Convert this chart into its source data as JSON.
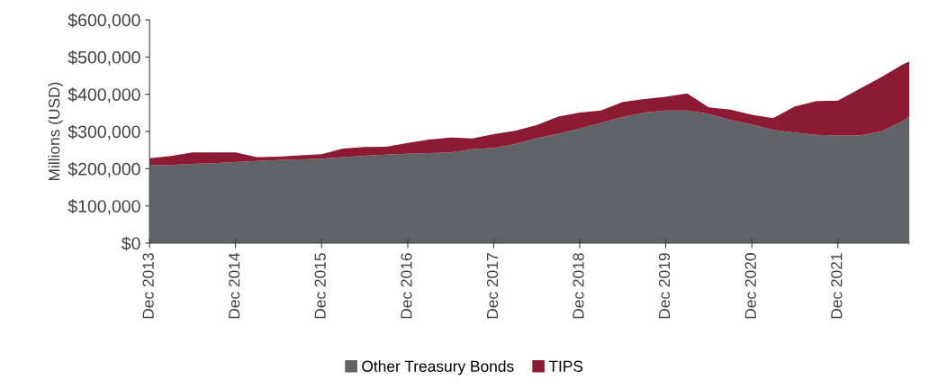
{
  "chart_data": {
    "type": "area",
    "stacked": true,
    "ylabel": "Millions (USD)",
    "x": [
      "2013-12",
      "2014-03",
      "2014-06",
      "2014-09",
      "2014-12",
      "2015-03",
      "2015-06",
      "2015-09",
      "2015-12",
      "2016-03",
      "2016-06",
      "2016-09",
      "2016-12",
      "2017-03",
      "2017-06",
      "2017-09",
      "2017-12",
      "2018-03",
      "2018-06",
      "2018-09",
      "2018-12",
      "2019-03",
      "2019-06",
      "2019-09",
      "2019-12",
      "2020-03",
      "2020-06",
      "2020-09",
      "2020-12",
      "2021-03",
      "2021-06",
      "2021-09",
      "2021-12",
      "2022-03",
      "2022-06",
      "2022-09",
      "2022-10"
    ],
    "series": [
      {
        "name": "Other Treasury Bonds",
        "color": "#5f6266",
        "values": [
          209000,
          210000,
          213000,
          215000,
          218000,
          221000,
          223000,
          225000,
          227000,
          231000,
          235000,
          238000,
          240000,
          242000,
          244000,
          252000,
          256000,
          266000,
          282000,
          294000,
          308000,
          323000,
          339000,
          351000,
          356000,
          356000,
          347000,
          331000,
          319000,
          304000,
          297000,
          291000,
          289000,
          289000,
          300000,
          327000,
          341000
        ]
      },
      {
        "name": "TIPS",
        "color": "#8b1a32",
        "values": [
          19000,
          24000,
          31000,
          29000,
          26000,
          10000,
          9000,
          11000,
          12000,
          23000,
          23000,
          21000,
          29000,
          36000,
          40000,
          29000,
          37000,
          36000,
          35000,
          46000,
          43000,
          33000,
          40000,
          36000,
          37000,
          46000,
          18000,
          28000,
          26000,
          32000,
          70000,
          91000,
          94000,
          125000,
          145000,
          153000,
          147000
        ]
      }
    ],
    "xlim": [
      "2013-12",
      "2022-10"
    ],
    "xticks": [
      {
        "value": "2013-12",
        "label": "Dec 2013"
      },
      {
        "value": "2014-12",
        "label": "Dec 2014"
      },
      {
        "value": "2015-12",
        "label": "Dec 2015"
      },
      {
        "value": "2016-12",
        "label": "Dec 2016"
      },
      {
        "value": "2017-12",
        "label": "Dec 2017"
      },
      {
        "value": "2018-12",
        "label": "Dec 2018"
      },
      {
        "value": "2019-12",
        "label": "Dec 2019"
      },
      {
        "value": "2020-12",
        "label": "Dec 2020"
      },
      {
        "value": "2021-12",
        "label": "Dec 2021"
      }
    ],
    "ylim": [
      0,
      600000
    ],
    "yticks": [
      {
        "value": 0,
        "label": "$0"
      },
      {
        "value": 100000,
        "label": "$100,000"
      },
      {
        "value": 200000,
        "label": "$200,000"
      },
      {
        "value": 300000,
        "label": "$300,000"
      },
      {
        "value": 400000,
        "label": "$400,000"
      },
      {
        "value": 500000,
        "label": "$500,000"
      },
      {
        "value": 600000,
        "label": "$600,000"
      }
    ],
    "grid": false,
    "legend": "bottom"
  }
}
